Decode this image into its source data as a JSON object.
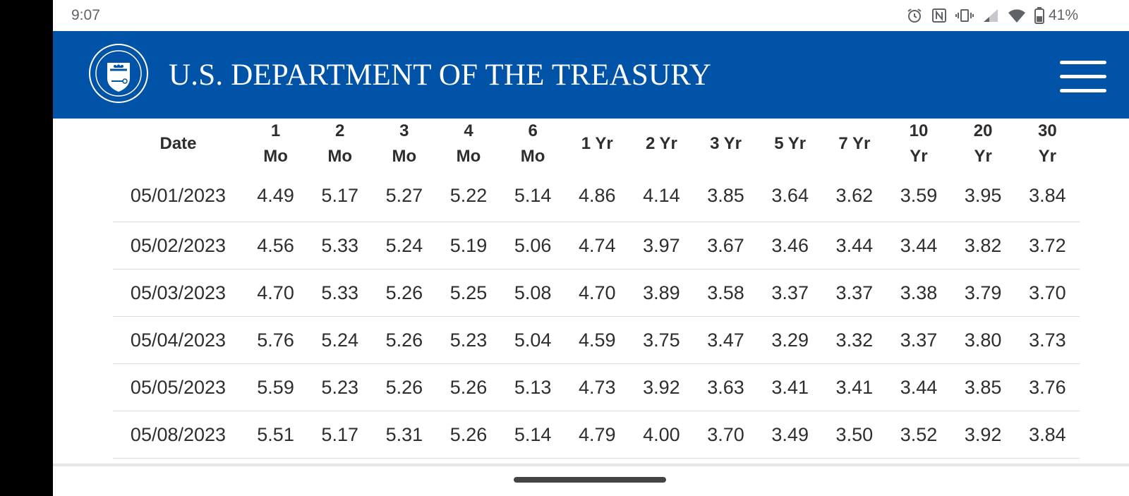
{
  "status_bar": {
    "time": "9:07",
    "battery_percent": "41%",
    "icons": [
      "alarm-icon",
      "nfc-icon",
      "vibrate-icon",
      "signal-icon",
      "wifi-icon",
      "battery-icon"
    ]
  },
  "header": {
    "title": "U.S. DEPARTMENT OF THE TREASURY",
    "seal_icon": "treasury-seal-icon",
    "menu_icon": "hamburger-menu-icon",
    "background_color": "#0053a6"
  },
  "table": {
    "columns": [
      {
        "line1": "Date",
        "line2": ""
      },
      {
        "line1": "1",
        "line2": "Mo"
      },
      {
        "line1": "2",
        "line2": "Mo"
      },
      {
        "line1": "3",
        "line2": "Mo"
      },
      {
        "line1": "4",
        "line2": "Mo"
      },
      {
        "line1": "6",
        "line2": "Mo"
      },
      {
        "line1": "1 Yr",
        "line2": ""
      },
      {
        "line1": "2 Yr",
        "line2": ""
      },
      {
        "line1": "3 Yr",
        "line2": ""
      },
      {
        "line1": "5 Yr",
        "line2": ""
      },
      {
        "line1": "7 Yr",
        "line2": ""
      },
      {
        "line1": "10",
        "line2": "Yr"
      },
      {
        "line1": "20",
        "line2": "Yr"
      },
      {
        "line1": "30",
        "line2": "Yr"
      }
    ],
    "rows": [
      [
        "05/01/2023",
        "4.49",
        "5.17",
        "5.27",
        "5.22",
        "5.14",
        "4.86",
        "4.14",
        "3.85",
        "3.64",
        "3.62",
        "3.59",
        "3.95",
        "3.84"
      ],
      [
        "05/02/2023",
        "4.56",
        "5.33",
        "5.24",
        "5.19",
        "5.06",
        "4.74",
        "3.97",
        "3.67",
        "3.46",
        "3.44",
        "3.44",
        "3.82",
        "3.72"
      ],
      [
        "05/03/2023",
        "4.70",
        "5.33",
        "5.26",
        "5.25",
        "5.08",
        "4.70",
        "3.89",
        "3.58",
        "3.37",
        "3.37",
        "3.38",
        "3.79",
        "3.70"
      ],
      [
        "05/04/2023",
        "5.76",
        "5.24",
        "5.26",
        "5.23",
        "5.04",
        "4.59",
        "3.75",
        "3.47",
        "3.29",
        "3.32",
        "3.37",
        "3.80",
        "3.73"
      ],
      [
        "05/05/2023",
        "5.59",
        "5.23",
        "5.26",
        "5.26",
        "5.13",
        "4.73",
        "3.92",
        "3.63",
        "3.41",
        "3.41",
        "3.44",
        "3.85",
        "3.76"
      ],
      [
        "05/08/2023",
        "5.51",
        "5.17",
        "5.31",
        "5.26",
        "5.14",
        "4.79",
        "4.00",
        "3.70",
        "3.49",
        "3.50",
        "3.52",
        "3.92",
        "3.84"
      ]
    ]
  }
}
